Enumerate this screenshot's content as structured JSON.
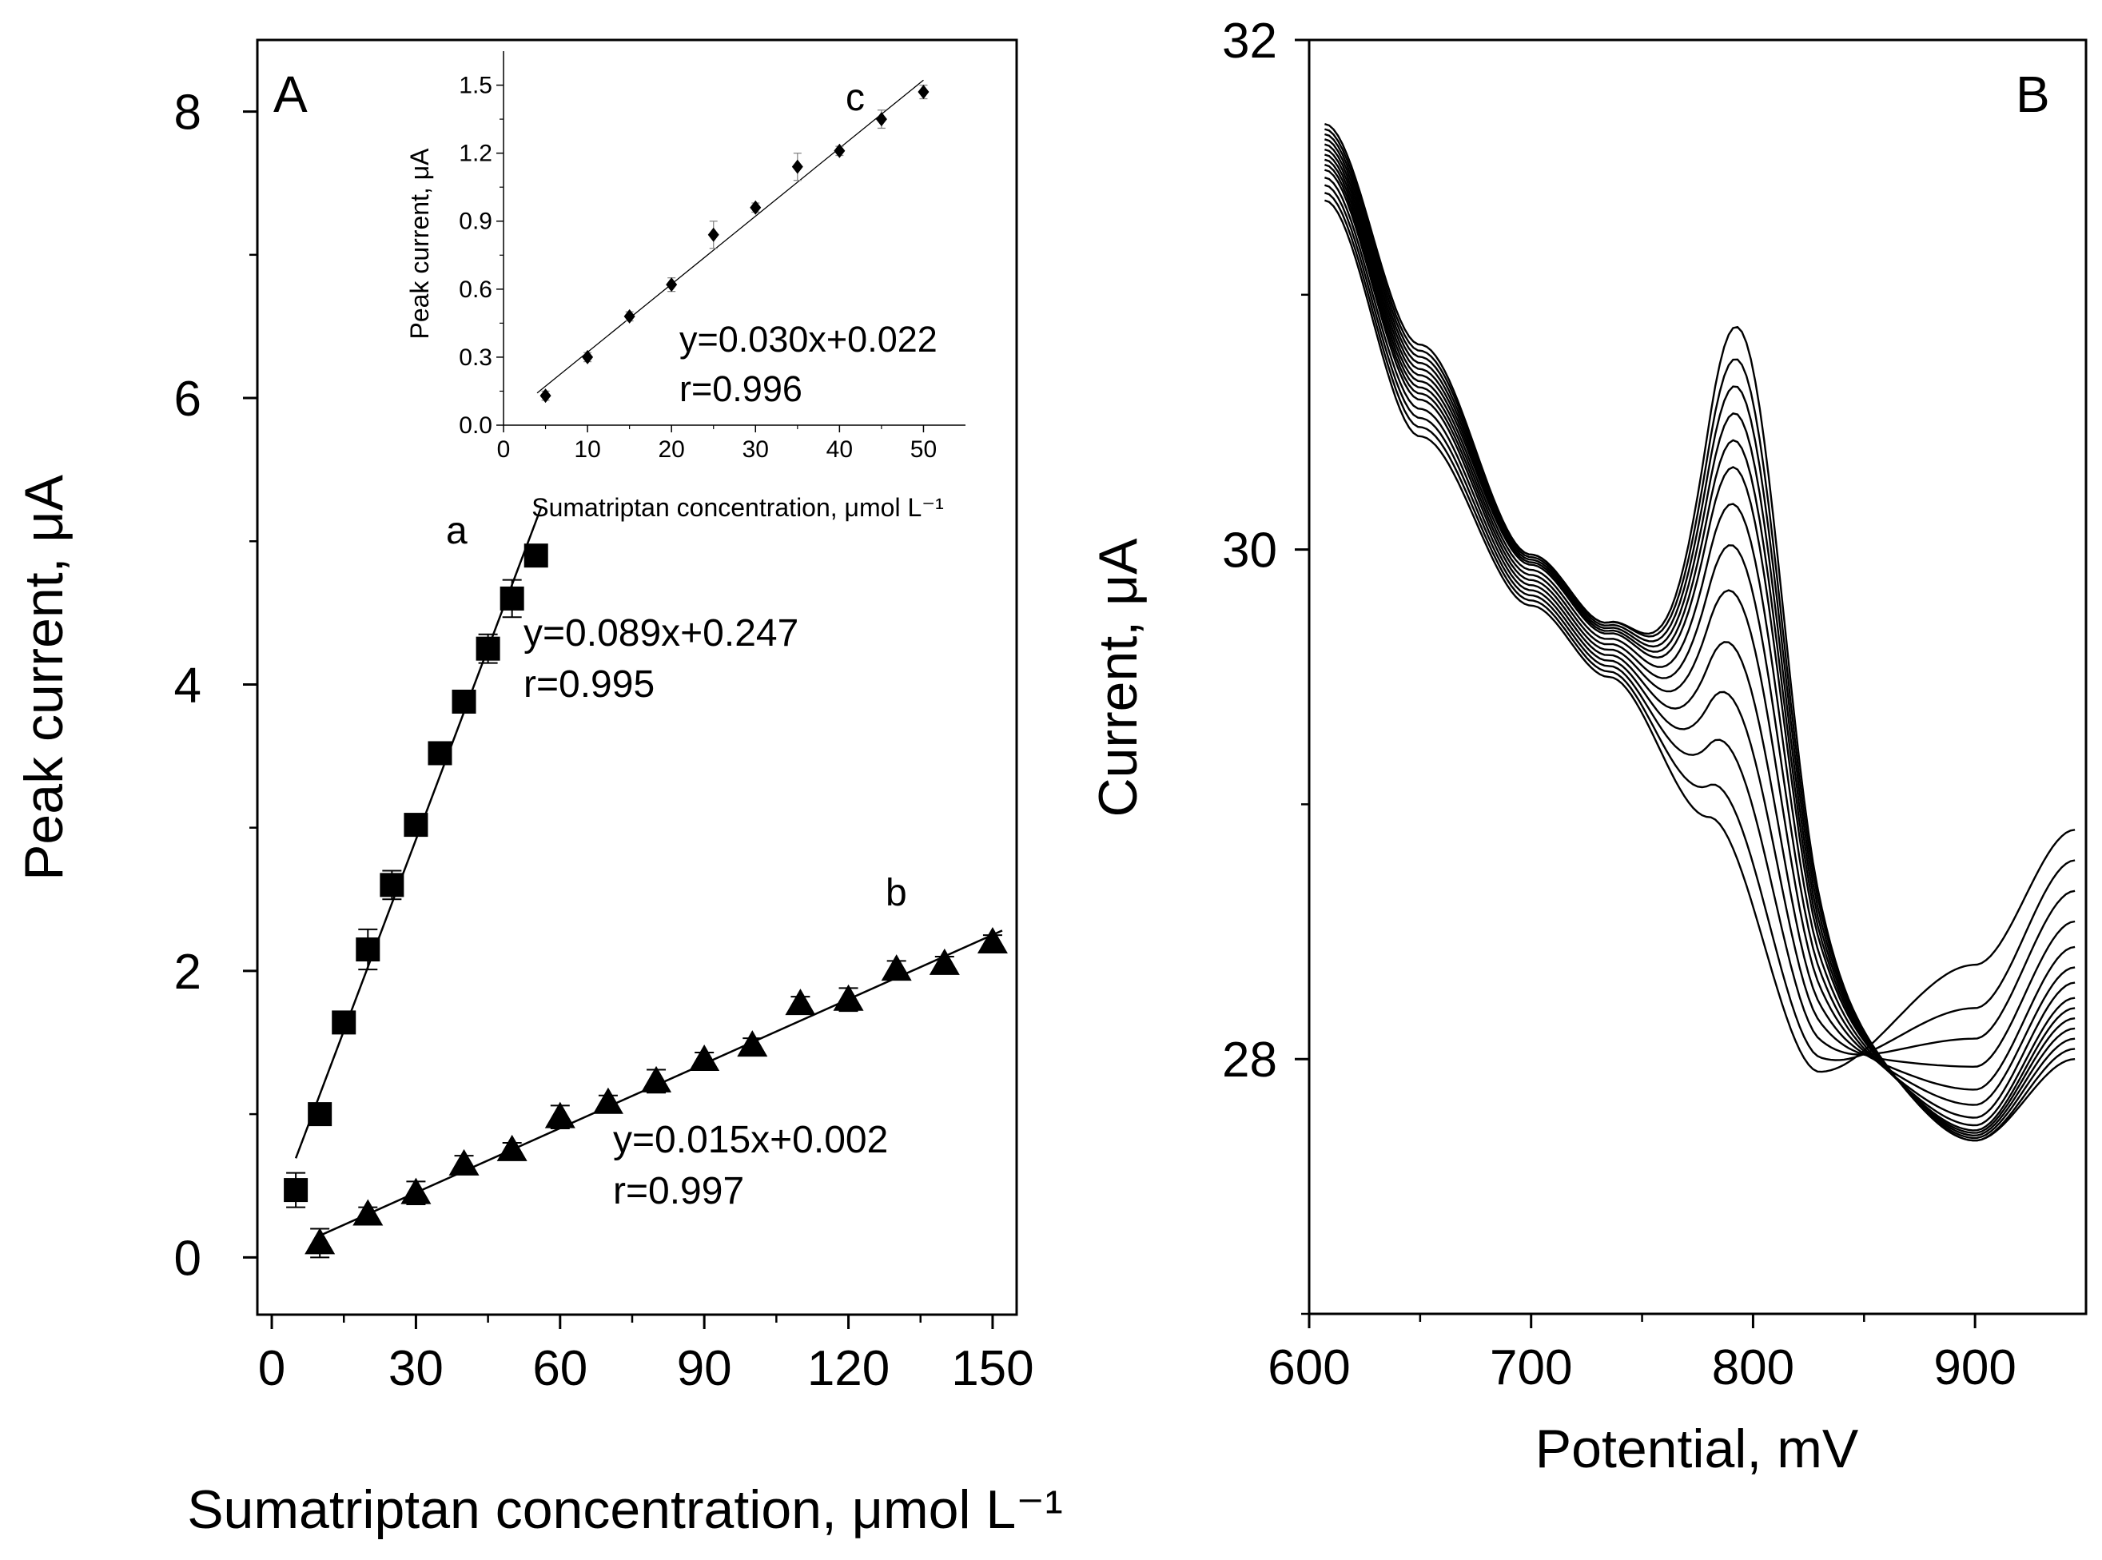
{
  "chart_data": [
    {
      "type": "scatter",
      "panel_letter": "A",
      "xlabel": "Sumatriptan concentration, μmol L⁻¹",
      "ylabel": "Peak current, μA",
      "xlim": [
        -3,
        155
      ],
      "ylim": [
        -0.4,
        8.5
      ],
      "xticks": [
        0,
        30,
        60,
        90,
        120,
        150
      ],
      "yticks": [
        0,
        2,
        4,
        6,
        8
      ],
      "grid": false,
      "series": [
        {
          "label": "a",
          "marker": "square",
          "x": [
            5,
            10,
            15,
            20,
            25,
            30,
            35,
            40,
            45,
            50,
            55
          ],
          "y": [
            0.47,
            1.0,
            1.64,
            2.15,
            2.6,
            3.02,
            3.52,
            3.88,
            4.25,
            4.6,
            4.9
          ],
          "yerr": [
            0.12,
            0.06,
            0.06,
            0.14,
            0.1,
            0.07,
            0.07,
            0.07,
            0.1,
            0.13,
            0.07
          ],
          "equation": "y=0.089x+0.247",
          "r": "r=0.995",
          "fit": {
            "slope": 0.089,
            "intercept": 0.247,
            "x_range": [
              5,
              56
            ]
          }
        },
        {
          "label": "b",
          "marker": "triangle",
          "x": [
            10,
            20,
            30,
            40,
            50,
            60,
            70,
            80,
            90,
            100,
            110,
            120,
            130,
            140,
            150
          ],
          "y": [
            0.1,
            0.3,
            0.45,
            0.65,
            0.75,
            0.98,
            1.08,
            1.23,
            1.38,
            1.48,
            1.77,
            1.8,
            2.01,
            2.05,
            2.2
          ],
          "yerr": [
            0.1,
            0.05,
            0.08,
            0.06,
            0.05,
            0.08,
            0.05,
            0.08,
            0.05,
            0.05,
            0.05,
            0.08,
            0.06,
            0.05,
            0.05
          ],
          "equation": "y=0.015x+0.002",
          "r": "r=0.997",
          "fit": {
            "slope": 0.015,
            "intercept": 0.002,
            "x_range": [
              10,
              152
            ]
          }
        }
      ]
    },
    {
      "type": "scatter",
      "panel_letter": "A (inset)",
      "xlabel": "Sumatriptan concentration, μmol L⁻¹",
      "ylabel": "Peak current, μA",
      "xlim": [
        0,
        55
      ],
      "ylim": [
        0,
        1.65
      ],
      "xticks": [
        0,
        10,
        20,
        30,
        40,
        50
      ],
      "yticks": [
        0.0,
        0.3,
        0.6,
        0.9,
        1.2,
        1.5
      ],
      "ytick_labels": [
        "0.0",
        "0.3",
        "0.6",
        "0.9",
        "1.2",
        "1.5"
      ],
      "grid": false,
      "series": [
        {
          "label": "c",
          "marker": "diamond",
          "x": [
            5,
            10,
            15,
            20,
            25,
            30,
            35,
            40,
            45,
            50
          ],
          "y": [
            0.13,
            0.3,
            0.48,
            0.62,
            0.84,
            0.96,
            1.14,
            1.21,
            1.35,
            1.47
          ],
          "yerr": [
            0.02,
            0.02,
            0.02,
            0.03,
            0.06,
            0.02,
            0.06,
            0.02,
            0.04,
            0.03
          ],
          "equation": "y=0.030x+0.022",
          "r": "r=0.996",
          "fit": {
            "slope": 0.03,
            "intercept": 0.022,
            "x_range": [
              4,
              50
            ]
          }
        }
      ]
    },
    {
      "type": "line",
      "panel_letter": "B",
      "xlabel": "Potential, mV",
      "ylabel": "Current, μA",
      "xlim": [
        600,
        950
      ],
      "ylim": [
        27,
        32
      ],
      "xticks": [
        600,
        700,
        800,
        900
      ],
      "yticks": [
        28,
        30,
        32
      ],
      "grid": false,
      "curve_model": {
        "x_range": [
          607,
          945
        ],
        "peak_potential": 797,
        "trough_potential": 900,
        "curves": [
          {
            "start": 31.37,
            "iso": 29.5,
            "peak": 0.0,
            "trough": 28.37,
            "end": 28.9
          },
          {
            "start": 31.4,
            "iso": 29.52,
            "peak": 0.15,
            "trough": 28.2,
            "end": 28.78
          },
          {
            "start": 31.43,
            "iso": 29.54,
            "peak": 0.35,
            "trough": 28.08,
            "end": 28.66
          },
          {
            "start": 31.46,
            "iso": 29.56,
            "peak": 0.55,
            "trough": 27.97,
            "end": 28.54
          },
          {
            "start": 31.49,
            "iso": 29.58,
            "peak": 0.75,
            "trough": 27.88,
            "end": 28.44
          },
          {
            "start": 31.51,
            "iso": 29.6,
            "peak": 0.95,
            "trough": 27.82,
            "end": 28.36
          },
          {
            "start": 31.53,
            "iso": 29.62,
            "peak": 1.12,
            "trough": 27.77,
            "end": 28.3
          },
          {
            "start": 31.55,
            "iso": 29.64,
            "peak": 1.27,
            "trough": 27.74,
            "end": 28.24
          },
          {
            "start": 31.57,
            "iso": 29.66,
            "peak": 1.4,
            "trough": 27.72,
            "end": 28.2
          },
          {
            "start": 31.59,
            "iso": 29.67,
            "peak": 1.5,
            "trough": 27.71,
            "end": 28.16
          },
          {
            "start": 31.61,
            "iso": 29.68,
            "peak": 1.6,
            "trough": 27.7,
            "end": 28.12
          },
          {
            "start": 31.63,
            "iso": 29.69,
            "peak": 1.7,
            "trough": 27.69,
            "end": 28.08
          },
          {
            "start": 31.65,
            "iso": 29.7,
            "peak": 1.8,
            "trough": 27.68,
            "end": 28.04
          },
          {
            "start": 31.67,
            "iso": 29.7,
            "peak": 1.93,
            "trough": 27.68,
            "end": 28.0
          }
        ]
      }
    }
  ]
}
